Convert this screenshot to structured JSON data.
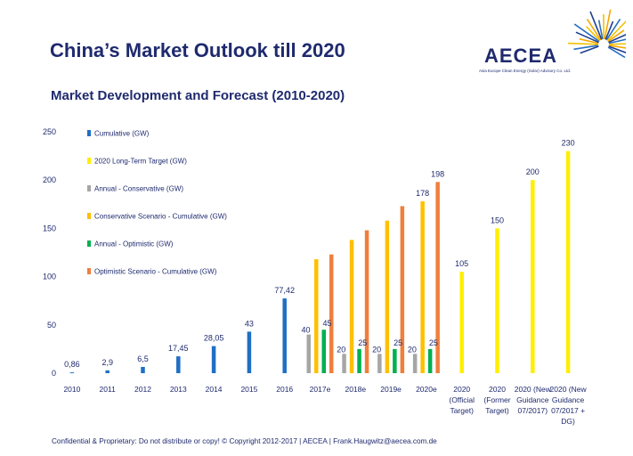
{
  "slide": {
    "title": "China’s Market Outlook till 2020",
    "subtitle": "Market Development and Forecast (2010-2020)",
    "footer": "Confidential & Proprietary: Do not distribute or copy! © Copyright 2012-2017 | AECEA   |  Frank.Haugwitz@aecea.com.de"
  },
  "logo": {
    "name": "AECEA",
    "tagline": "Asia Europe Clean Energy (Solar) Advisory Co. Ltd.",
    "colors": [
      "#1f3f8f",
      "#2b6fc0",
      "#f2c200",
      "#f5a800"
    ]
  },
  "chart_data": {
    "type": "bar",
    "ylim": [
      0,
      250
    ],
    "yticks": [
      0,
      50,
      100,
      150,
      200,
      250
    ],
    "grid": false,
    "legend_position": "top-left",
    "categories": [
      "2010",
      "2011",
      "2012",
      "2013",
      "2014",
      "2015",
      "2016",
      "2017e",
      "2018e",
      "2019e",
      "2020e",
      [
        "2020",
        "(Official",
        "Target)"
      ],
      [
        "2020",
        "(Former",
        "Target)"
      ],
      [
        "2020 (New",
        "Guidance",
        "07/2017)"
      ],
      [
        "2020 (New",
        "Guidance",
        "07/2017 +",
        "DG)"
      ]
    ],
    "series": [
      {
        "name": "Cumulative (GW)",
        "color": "#1f6fc4",
        "values": [
          0.86,
          2.9,
          6.5,
          17.45,
          28.05,
          43,
          77.42,
          null,
          null,
          null,
          null,
          null,
          null,
          null,
          null
        ],
        "labels": [
          "0,86",
          "2,9",
          "6,5",
          "17,45",
          "28,05",
          "43",
          "77,42",
          null,
          null,
          null,
          null,
          null,
          null,
          null,
          null
        ]
      },
      {
        "name": "2020 Long-Term Target (GW)",
        "color": "#ffee00",
        "values": [
          null,
          null,
          null,
          null,
          null,
          null,
          null,
          null,
          null,
          null,
          null,
          105,
          150,
          200,
          230
        ],
        "labels": [
          null,
          null,
          null,
          null,
          null,
          null,
          null,
          null,
          null,
          null,
          null,
          "105",
          "150",
          "200",
          "230"
        ]
      },
      {
        "name": "Annual - Conservative (GW)",
        "color": "#a6a6a6",
        "values": [
          null,
          null,
          null,
          null,
          null,
          null,
          null,
          40,
          20,
          20,
          20,
          null,
          null,
          null,
          null
        ],
        "labels": [
          null,
          null,
          null,
          null,
          null,
          null,
          null,
          "40",
          "20",
          "20",
          "20",
          null,
          null,
          null,
          null
        ]
      },
      {
        "name": "Conservative Scenario - Cumulative (GW)",
        "color": "#ffc000",
        "values": [
          null,
          null,
          null,
          null,
          null,
          null,
          null,
          118,
          138,
          158,
          178,
          null,
          null,
          null,
          null
        ],
        "labels": [
          null,
          null,
          null,
          null,
          null,
          null,
          null,
          null,
          null,
          null,
          "178",
          null,
          null,
          null,
          null
        ]
      },
      {
        "name": "Annual - Optimistic (GW)",
        "color": "#00b050",
        "values": [
          null,
          null,
          null,
          null,
          null,
          null,
          null,
          45,
          25,
          25,
          25,
          null,
          null,
          null,
          null
        ],
        "labels": [
          null,
          null,
          null,
          null,
          null,
          null,
          null,
          "45",
          "25",
          "25",
          "25",
          null,
          null,
          null,
          null
        ]
      },
      {
        "name": "Optimistic Scenario - Cumulative (GW)",
        "color": "#f07f3c",
        "values": [
          null,
          null,
          null,
          null,
          null,
          null,
          null,
          123,
          148,
          173,
          198,
          null,
          null,
          null,
          null
        ],
        "labels": [
          null,
          null,
          null,
          null,
          null,
          null,
          null,
          null,
          null,
          null,
          "198",
          null,
          null,
          null,
          null
        ]
      }
    ]
  }
}
